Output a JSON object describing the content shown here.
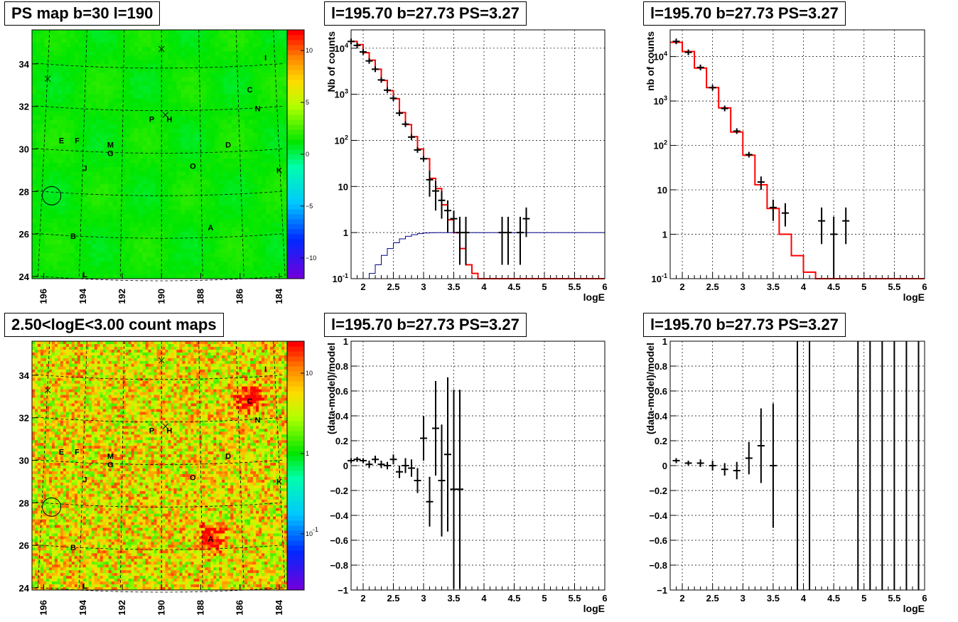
{
  "titles": {
    "ps_map": "PS map b=30 l=190",
    "spectrum_1": "l=195.70 b=27.73 PS=3.27",
    "spectrum_2": "l=195.70 b=27.73 PS=3.27",
    "count_maps": "2.50<logE<3.00 count maps",
    "residual_1": "l=195.70 b=27.73 PS=3.27",
    "residual_2": "l=195.70 b=27.73 PS=3.27"
  },
  "colors": {
    "model_line": "#ff0000",
    "exposure_line": "#00008b",
    "data": "#000000"
  },
  "chart_data": [
    {
      "id": "ps_map",
      "type": "heatmap",
      "xlabel": "",
      "ylabel": "",
      "xlim": [
        196.6,
        183.6
      ],
      "ylim": [
        23.9,
        35.6
      ],
      "x_ticks": [
        196,
        194,
        192,
        190,
        188,
        186,
        184
      ],
      "y_ticks": [
        24,
        26,
        28,
        30,
        32,
        34
      ],
      "palette_ticks": [
        {
          "value": 10,
          "label": "10"
        },
        {
          "value": 5,
          "label": "5"
        },
        {
          "value": 0,
          "label": "0"
        },
        {
          "value": -5,
          "label": "−5"
        },
        {
          "value": -10,
          "label": "−10"
        }
      ],
      "palette_range": [
        -12,
        12
      ],
      "sources": [
        {
          "label": "I",
          "l": 184.7,
          "b": 34.3
        },
        {
          "label": "C",
          "l": 185.5,
          "b": 32.8
        },
        {
          "label": "N",
          "l": 185.1,
          "b": 31.9
        },
        {
          "label": "P",
          "l": 190.5,
          "b": 31.4
        },
        {
          "label": "H",
          "l": 189.6,
          "b": 31.4
        },
        {
          "label": "E",
          "l": 195.1,
          "b": 30.4
        },
        {
          "label": "F",
          "l": 194.3,
          "b": 30.4
        },
        {
          "label": "M",
          "l": 192.6,
          "b": 30.2
        },
        {
          "label": "G",
          "l": 192.6,
          "b": 29.8
        },
        {
          "label": "D",
          "l": 186.6,
          "b": 30.2
        },
        {
          "label": "O",
          "l": 188.4,
          "b": 29.2
        },
        {
          "label": "J",
          "l": 193.9,
          "b": 29.1
        },
        {
          "label": "K",
          "l": 184.0,
          "b": 29.0
        },
        {
          "label": "A",
          "l": 187.5,
          "b": 26.3
        },
        {
          "label": "B",
          "l": 194.5,
          "b": 25.9
        },
        {
          "label": "L",
          "l": 193.9,
          "b": 24.1
        }
      ],
      "crosses": [
        {
          "l": 190.0,
          "b": 34.7
        },
        {
          "l": 195.8,
          "b": 33.3
        },
        {
          "l": 189.8,
          "b": 31.6
        }
      ],
      "circle": {
        "l": 195.6,
        "b": 27.8
      }
    },
    {
      "id": "spectrum_1",
      "type": "line",
      "xlabel": "logE",
      "ylabel": "Nb of counts",
      "xlim": [
        1.8,
        6
      ],
      "ylog": true,
      "ylim": [
        0.1,
        25000
      ],
      "x_ticks": [
        "2",
        "2.5",
        "3",
        "3.5",
        "4",
        "4.5",
        "5",
        "5.5",
        "6"
      ],
      "y_ticks": [
        "10^{-1}",
        "1",
        "10",
        "10^{2}",
        "10^{3}",
        "10^{4}"
      ],
      "series": [
        {
          "kind": "model_step",
          "bin_edges": [
            1.8,
            1.9,
            2.0,
            2.1,
            2.2,
            2.3,
            2.4,
            2.5,
            2.6,
            2.7,
            2.8,
            2.9,
            3.0,
            3.1,
            3.2,
            3.3,
            3.4,
            3.5,
            3.6,
            3.7,
            3.8,
            3.9,
            4.0,
            6.0
          ],
          "values": [
            14000,
            12000,
            8000,
            5500,
            3500,
            2000,
            1200,
            800,
            400,
            220,
            120,
            65,
            40,
            15,
            9,
            4,
            1.9,
            1.0,
            0.45,
            0.2,
            0.13,
            0.1,
            0.1
          ]
        },
        {
          "kind": "exposure_step",
          "bin_edges": [
            2.0,
            2.1,
            2.2,
            2.3,
            2.4,
            2.5,
            2.6,
            2.7,
            2.8,
            2.9,
            3.0,
            3.1,
            3.2,
            6.0
          ],
          "values": [
            0.1,
            0.13,
            0.2,
            0.32,
            0.45,
            0.6,
            0.73,
            0.83,
            0.9,
            0.95,
            0.98,
            0.99,
            1.0
          ]
        },
        {
          "kind": "data_points",
          "x": [
            1.8,
            1.9,
            2.0,
            2.1,
            2.2,
            2.3,
            2.4,
            2.5,
            2.6,
            2.7,
            2.8,
            2.9,
            3.0,
            3.1,
            3.2,
            3.3,
            3.4,
            3.5,
            3.6,
            3.7,
            4.3,
            4.4,
            4.6,
            4.7
          ],
          "y": [
            14000,
            11500,
            8300,
            5300,
            3500,
            2050,
            1230,
            820,
            390,
            225,
            118,
            62,
            40,
            14,
            8,
            5,
            3,
            2,
            1,
            1,
            1,
            1,
            1,
            2
          ],
          "yerr_low": [
            0,
            0,
            0,
            0,
            0,
            0,
            0,
            0,
            0,
            0,
            0,
            0,
            0,
            8,
            5,
            3,
            2,
            1,
            0.8,
            0.8,
            0.8,
            0.8,
            0.8,
            1.2
          ],
          "yerr_high": [
            0,
            0,
            0,
            0,
            0,
            0,
            0,
            0,
            0,
            0,
            0,
            0,
            0,
            8,
            5,
            3,
            2,
            1,
            1.2,
            1.2,
            1.2,
            1.2,
            1.2,
            1.5
          ]
        }
      ]
    },
    {
      "id": "spectrum_2",
      "type": "line",
      "xlabel": "logE",
      "ylabel": "nb of counts",
      "xlim": [
        1.8,
        6
      ],
      "ylog": true,
      "ylim": [
        0.1,
        40000
      ],
      "x_ticks": [
        "2",
        "2.5",
        "3",
        "3.5",
        "4",
        "4.5",
        "5",
        "5.5",
        "6"
      ],
      "y_ticks": [
        "10^{-1}",
        "1",
        "10",
        "10^{2}",
        "10^{3}",
        "10^{4}"
      ],
      "series": [
        {
          "kind": "model_step",
          "bin_edges": [
            1.8,
            2.0,
            2.2,
            2.4,
            2.6,
            2.8,
            3.0,
            3.2,
            3.4,
            3.6,
            3.8,
            4.0,
            4.2,
            6.0
          ],
          "values": [
            21000,
            13000,
            5500,
            2000,
            700,
            200,
            60,
            13,
            3.8,
            1.0,
            0.33,
            0.14,
            0.1
          ]
        },
        {
          "kind": "data_points",
          "x": [
            1.9,
            2.1,
            2.3,
            2.5,
            2.7,
            2.9,
            3.1,
            3.3,
            3.5,
            3.7,
            4.3,
            4.5,
            4.7
          ],
          "y": [
            22000,
            12500,
            5700,
            2000,
            680,
            210,
            62,
            15,
            4,
            3,
            2,
            1,
            2
          ],
          "yerr_low": [
            0,
            0,
            0,
            0,
            0,
            0,
            0,
            5,
            2,
            1.5,
            1.4,
            1,
            1.4
          ],
          "yerr_high": [
            0,
            0,
            0,
            0,
            0,
            0,
            0,
            5,
            2,
            2,
            2,
            1.5,
            2
          ]
        }
      ]
    },
    {
      "id": "count_maps",
      "type": "heatmap",
      "xlabel": "",
      "ylabel": "",
      "xlim": [
        196.6,
        183.6
      ],
      "ylim": [
        23.9,
        35.6
      ],
      "x_ticks": [
        196,
        194,
        192,
        190,
        188,
        186,
        184
      ],
      "y_ticks": [
        24,
        26,
        28,
        30,
        32,
        34
      ],
      "palette_ticks": [
        {
          "value": 10,
          "label": "10"
        },
        {
          "value": 1,
          "label": "1"
        },
        {
          "value": 0.1,
          "label": "10^{-1}"
        }
      ],
      "palette_log": true,
      "palette_range": [
        0.02,
        25
      ],
      "sources_ref": "ps_map",
      "bright_spots": [
        {
          "l": 187.4,
          "b": 26.4,
          "label": "A"
        },
        {
          "l": 185.5,
          "b": 32.9,
          "label": "C"
        }
      ],
      "crosses": [
        {
          "l": 190.0,
          "b": 34.7
        },
        {
          "l": 195.8,
          "b": 33.3
        },
        {
          "l": 189.8,
          "b": 31.6
        }
      ],
      "circle": {
        "l": 195.6,
        "b": 27.8
      }
    },
    {
      "id": "residual_1",
      "type": "scatter",
      "xlabel": "logE",
      "ylabel": "(data-model)/model",
      "xlim": [
        1.8,
        6
      ],
      "ylim": [
        -1,
        1
      ],
      "x_ticks": [
        "2",
        "2.5",
        "3",
        "3.5",
        "4",
        "4.5",
        "5",
        "5.5",
        "6"
      ],
      "y_ticks": [
        "−1",
        "−0.8",
        "−0.6",
        "−0.4",
        "−0.2",
        "0",
        "0.2",
        "0.4",
        "0.6",
        "0.8",
        "1"
      ],
      "x": [
        1.8,
        1.9,
        2.0,
        2.1,
        2.2,
        2.3,
        2.4,
        2.5,
        2.6,
        2.7,
        2.8,
        2.9,
        3.0,
        3.1,
        3.2,
        3.3,
        3.4,
        3.5,
        3.6
      ],
      "y": [
        0.04,
        0.05,
        0.04,
        0.01,
        0.05,
        0.01,
        0.0,
        0.05,
        -0.05,
        0.0,
        -0.02,
        -0.12,
        0.22,
        -0.29,
        0.3,
        -0.12,
        0.09,
        -0.19,
        -0.19
      ],
      "yerr": [
        0.02,
        0.02,
        0.02,
        0.03,
        0.03,
        0.03,
        0.03,
        0.04,
        0.05,
        0.06,
        0.07,
        0.1,
        0.18,
        0.2,
        0.38,
        0.45,
        0.62,
        0.8,
        0.8
      ]
    },
    {
      "id": "residual_2",
      "type": "scatter",
      "xlabel": "logE",
      "ylabel": "(data-model)/model",
      "xlim": [
        1.8,
        6
      ],
      "ylim": [
        -1,
        1
      ],
      "x_ticks": [
        "2",
        "2.5",
        "3",
        "3.5",
        "4",
        "4.5",
        "5",
        "5.5",
        "6"
      ],
      "y_ticks": [
        "−1",
        "−0.8",
        "−0.6",
        "−0.4",
        "−0.2",
        "0",
        "0.2",
        "0.4",
        "0.6",
        "0.8",
        "1"
      ],
      "x": [
        1.9,
        2.1,
        2.3,
        2.5,
        2.7,
        2.9,
        3.1,
        3.3,
        3.5
      ],
      "y": [
        0.04,
        0.02,
        0.02,
        0.0,
        -0.03,
        -0.04,
        0.06,
        0.16,
        0.0
      ],
      "yerr": [
        0.02,
        0.02,
        0.03,
        0.04,
        0.05,
        0.07,
        0.13,
        0.3,
        0.5
      ],
      "vertical_lines_x": [
        3.9,
        4.1,
        4.9,
        5.1,
        5.3,
        5.5,
        5.7,
        5.9
      ]
    }
  ]
}
